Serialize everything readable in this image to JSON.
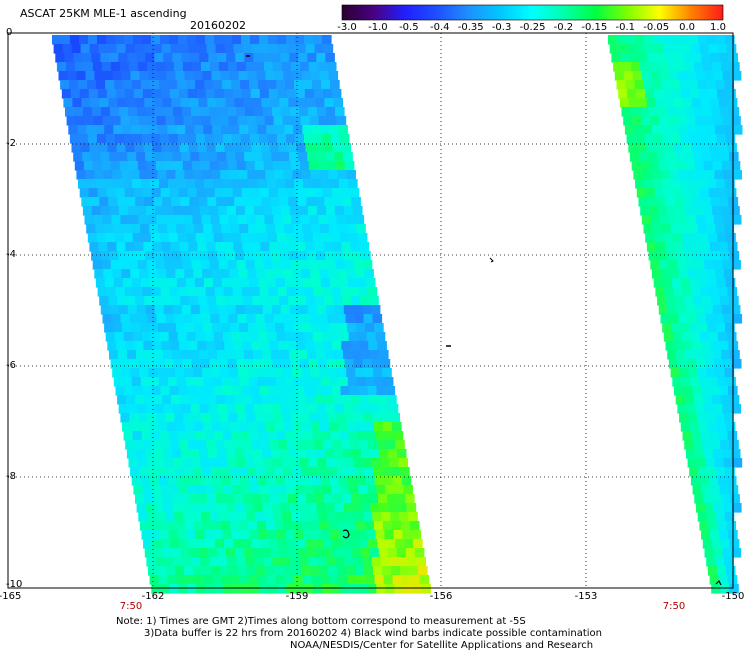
{
  "header": {
    "title": "ASCAT 25KM MLE-1 ascending",
    "date": "20160202"
  },
  "colorbar": {
    "labels": [
      "-3.0",
      "-1.0",
      "-0.5",
      "-0.4",
      "-0.35",
      "-0.3",
      "-0.25",
      "-0.2",
      "-0.15",
      "-0.1",
      "-0.05",
      "0.0",
      "1.0"
    ],
    "colors": [
      "#2a0030",
      "#4b0082",
      "#2020ff",
      "#1e50ff",
      "#1e90ff",
      "#00c8ff",
      "#00ffff",
      "#00ffaa",
      "#00ff40",
      "#7fff00",
      "#ffff00",
      "#ff8000",
      "#ff1a1a"
    ]
  },
  "axes": {
    "x_ticks": [
      "-165",
      "-162",
      "-159",
      "-156",
      "-153",
      "-150"
    ],
    "y_ticks": [
      "0",
      "-2",
      "-4",
      "-6",
      "-8",
      "-10"
    ],
    "lon_range": [
      -165,
      -150
    ],
    "lat_range": [
      -10,
      0
    ]
  },
  "times": [
    "7:50",
    "7:50"
  ],
  "notes": {
    "line1": "Note: 1) Times are GMT 2)Times along bottom correspond to measurement at -5S",
    "line2": "3)Data buffer is 22 hrs from 20160202 4) Black wind barbs indicate possible contamination",
    "line3": "NOAA/NESDIS/Center for Satellite Applications and Research"
  }
}
